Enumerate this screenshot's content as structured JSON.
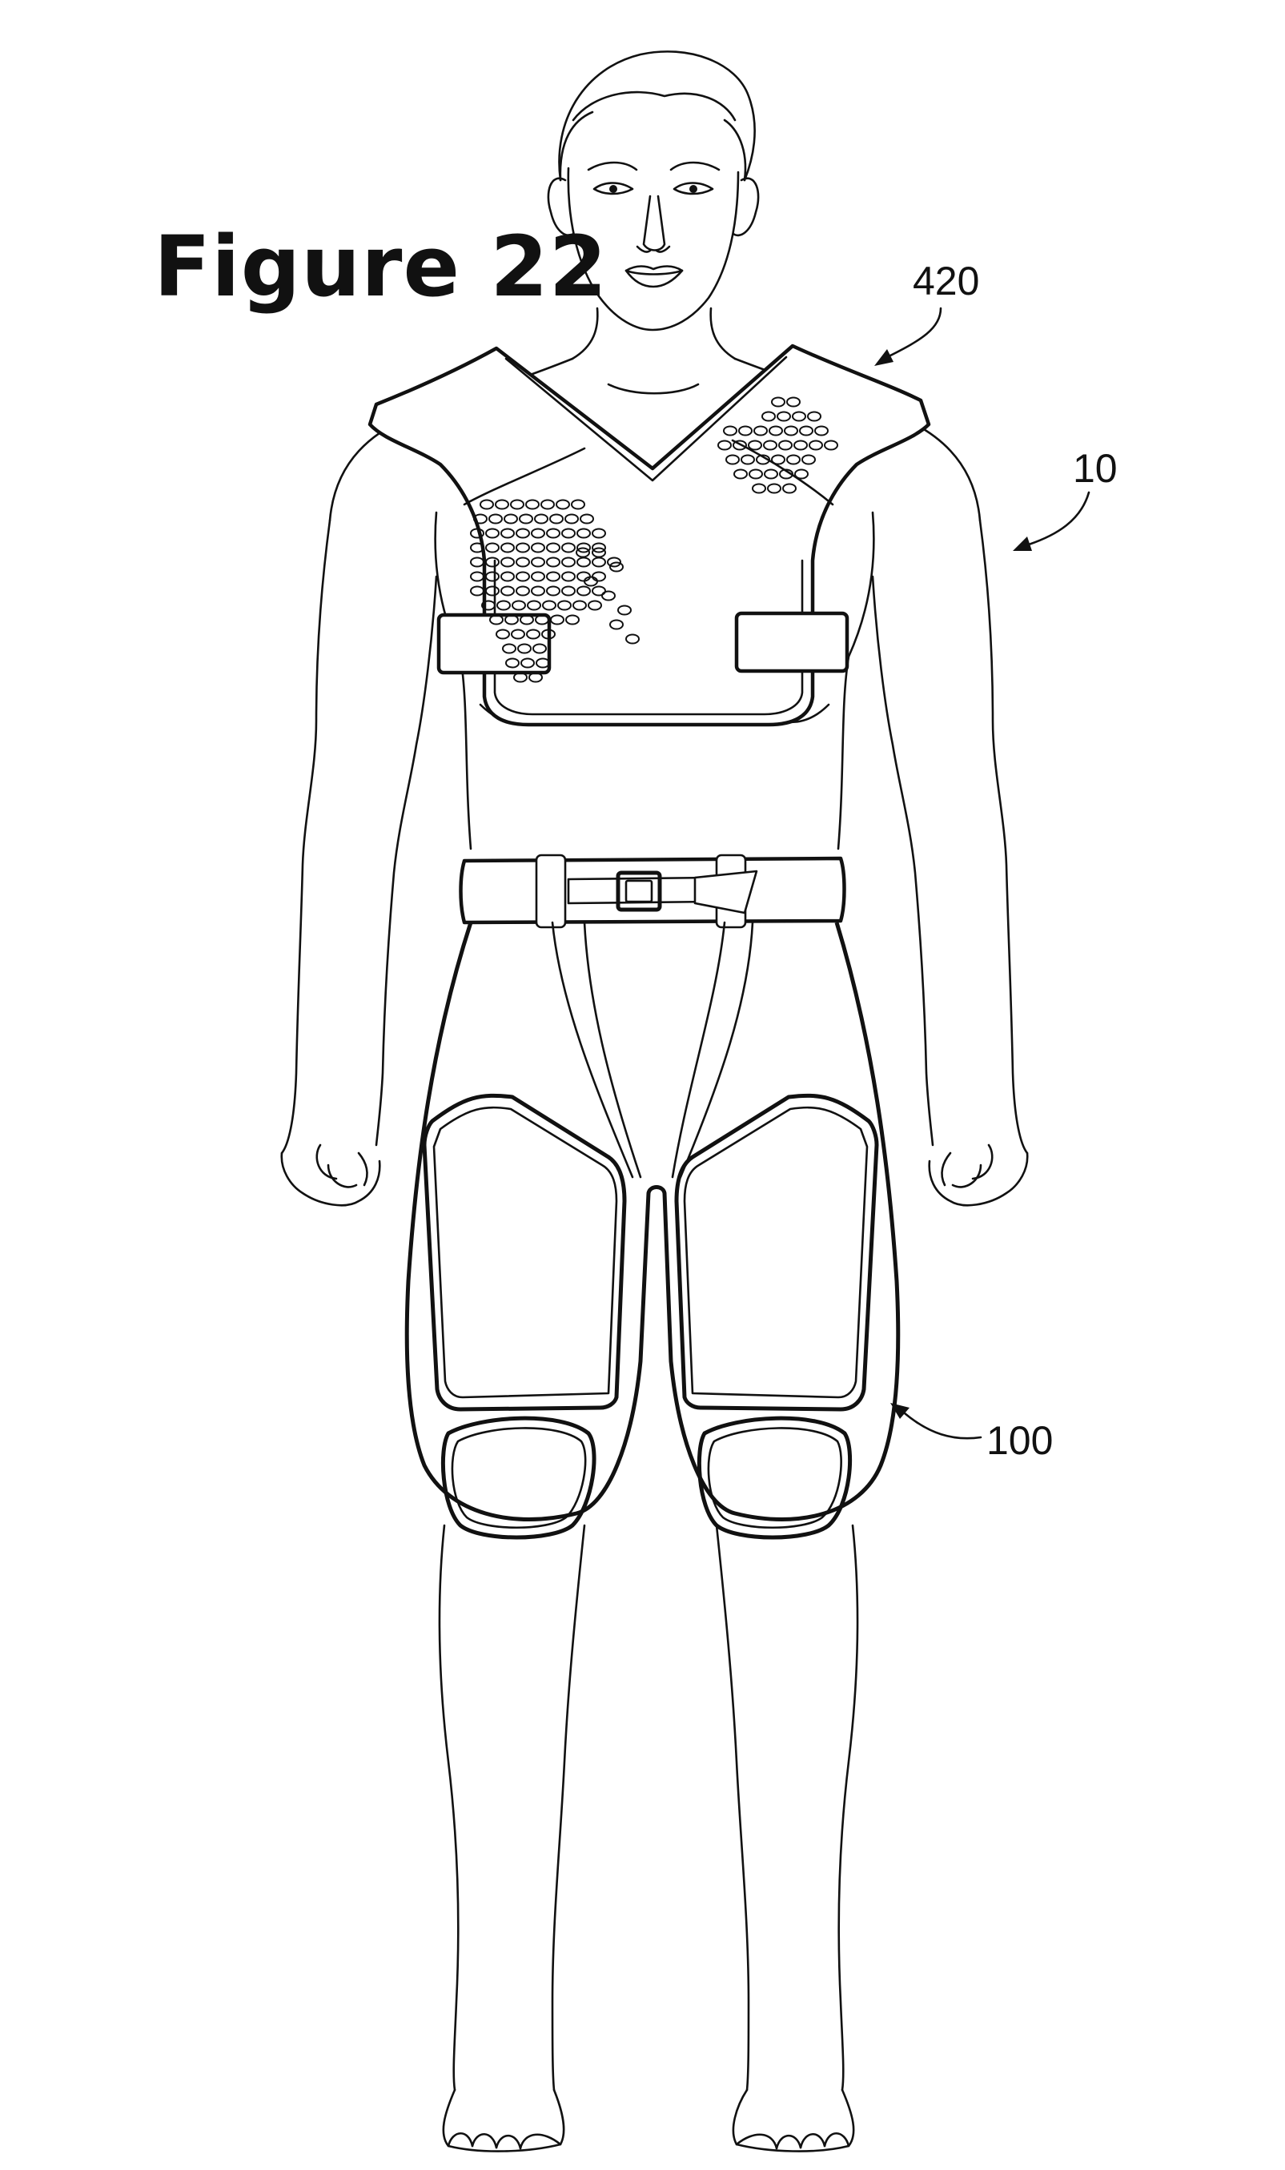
{
  "figure": {
    "title": "Figure 22",
    "references": {
      "assembly": "10",
      "upper_garment": "420",
      "lower_garment": "100"
    }
  }
}
